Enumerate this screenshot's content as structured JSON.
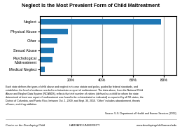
{
  "chart_data": {
    "type": "bar",
    "orientation": "horizontal",
    "title": "Neglect Is the Most Prevalent Form of Child Maltreatment",
    "categories": [
      "Medical Neglect",
      "Psychological\nMaltreatment",
      "Sexual Abuse",
      "Other",
      "Physical Abuse",
      "Neglect"
    ],
    "values": [
      3,
      8,
      9,
      11,
      18,
      78
    ],
    "xlim": [
      0,
      88
    ],
    "xticks": [
      {
        "value": 20,
        "label": "20%"
      },
      {
        "value": 40,
        "label": "40%"
      },
      {
        "value": 60,
        "label": "60%"
      },
      {
        "value": 80,
        "label": "80%"
      }
    ],
    "grid": true,
    "annotations": [
      "Each state defines the types of child abuse and neglect in its own statute and policy, guided by federal standards, and\nestablishes the level of evidence needed to substantiate a report of maltreatment. The data above, from the National Child\nAbuse and Neglect Data System (NCANDS), reflects the total number of victims (defined as a child for whom the state\ndetermined at least one report of maltreatment was found to be substantiated or indicated) as reported by all 50 states, the\nDistrict of Columbia, and Puerto Rico, between Oct. 1, 2009, and Sept. 30, 2010. “Other” includes abandonment, threats\nof harm, and drug addiction.",
      "Source: U.S. Department of Health and Human Services (2012)",
      "Center on the Developing Child",
      "HARVARD UNIVERSITY",
      "www.developingchild.harvard.edu"
    ]
  }
}
